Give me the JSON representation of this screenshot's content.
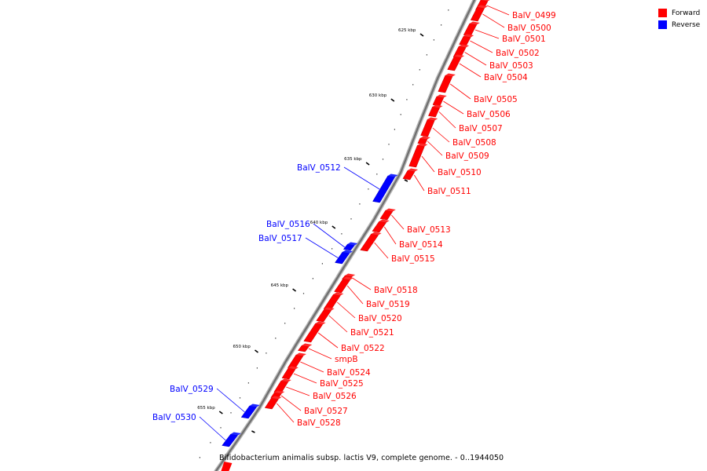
{
  "legend": [
    {
      "label": "Forward",
      "color": "#ff0000"
    },
    {
      "label": "Reverse",
      "color": "#0000ff"
    }
  ],
  "caption": "Bifidobacterium animalis subsp. lactis V9, complete genome. - 0..1944050",
  "genome_map": {
    "axis_ticks": [
      "625 kbp",
      "630 kbp",
      "635 kbp",
      "640 kbp",
      "645 kbp",
      "650 kbp",
      "655 kbp"
    ],
    "genes": [
      {
        "name": "BalV_0499",
        "strand": "forward"
      },
      {
        "name": "BalV_0500",
        "strand": "forward"
      },
      {
        "name": "BalV_0501",
        "strand": "forward"
      },
      {
        "name": "BalV_0502",
        "strand": "forward"
      },
      {
        "name": "BalV_0503",
        "strand": "forward"
      },
      {
        "name": "BalV_0504",
        "strand": "forward"
      },
      {
        "name": "BalV_0505",
        "strand": "forward"
      },
      {
        "name": "BalV_0506",
        "strand": "forward"
      },
      {
        "name": "BalV_0507",
        "strand": "forward"
      },
      {
        "name": "BalV_0508",
        "strand": "forward"
      },
      {
        "name": "BalV_0509",
        "strand": "forward"
      },
      {
        "name": "BalV_0510",
        "strand": "forward"
      },
      {
        "name": "BalV_0511",
        "strand": "forward"
      },
      {
        "name": "BalV_0512",
        "strand": "reverse"
      },
      {
        "name": "BalV_0513",
        "strand": "forward"
      },
      {
        "name": "BalV_0514",
        "strand": "forward"
      },
      {
        "name": "BalV_0515",
        "strand": "forward"
      },
      {
        "name": "BalV_0516",
        "strand": "reverse"
      },
      {
        "name": "BalV_0517",
        "strand": "reverse"
      },
      {
        "name": "BalV_0518",
        "strand": "forward"
      },
      {
        "name": "BalV_0519",
        "strand": "forward"
      },
      {
        "name": "BalV_0520",
        "strand": "forward"
      },
      {
        "name": "BalV_0521",
        "strand": "forward"
      },
      {
        "name": "BalV_0522",
        "strand": "forward"
      },
      {
        "name": "smpB",
        "strand": "forward"
      },
      {
        "name": "BalV_0524",
        "strand": "forward"
      },
      {
        "name": "BalV_0525",
        "strand": "forward"
      },
      {
        "name": "BalV_0526",
        "strand": "forward"
      },
      {
        "name": "BalV_0527",
        "strand": "forward"
      },
      {
        "name": "BalV_0528",
        "strand": "forward"
      },
      {
        "name": "BalV_0529",
        "strand": "reverse"
      },
      {
        "name": "BalV_0530",
        "strand": "reverse"
      }
    ]
  }
}
